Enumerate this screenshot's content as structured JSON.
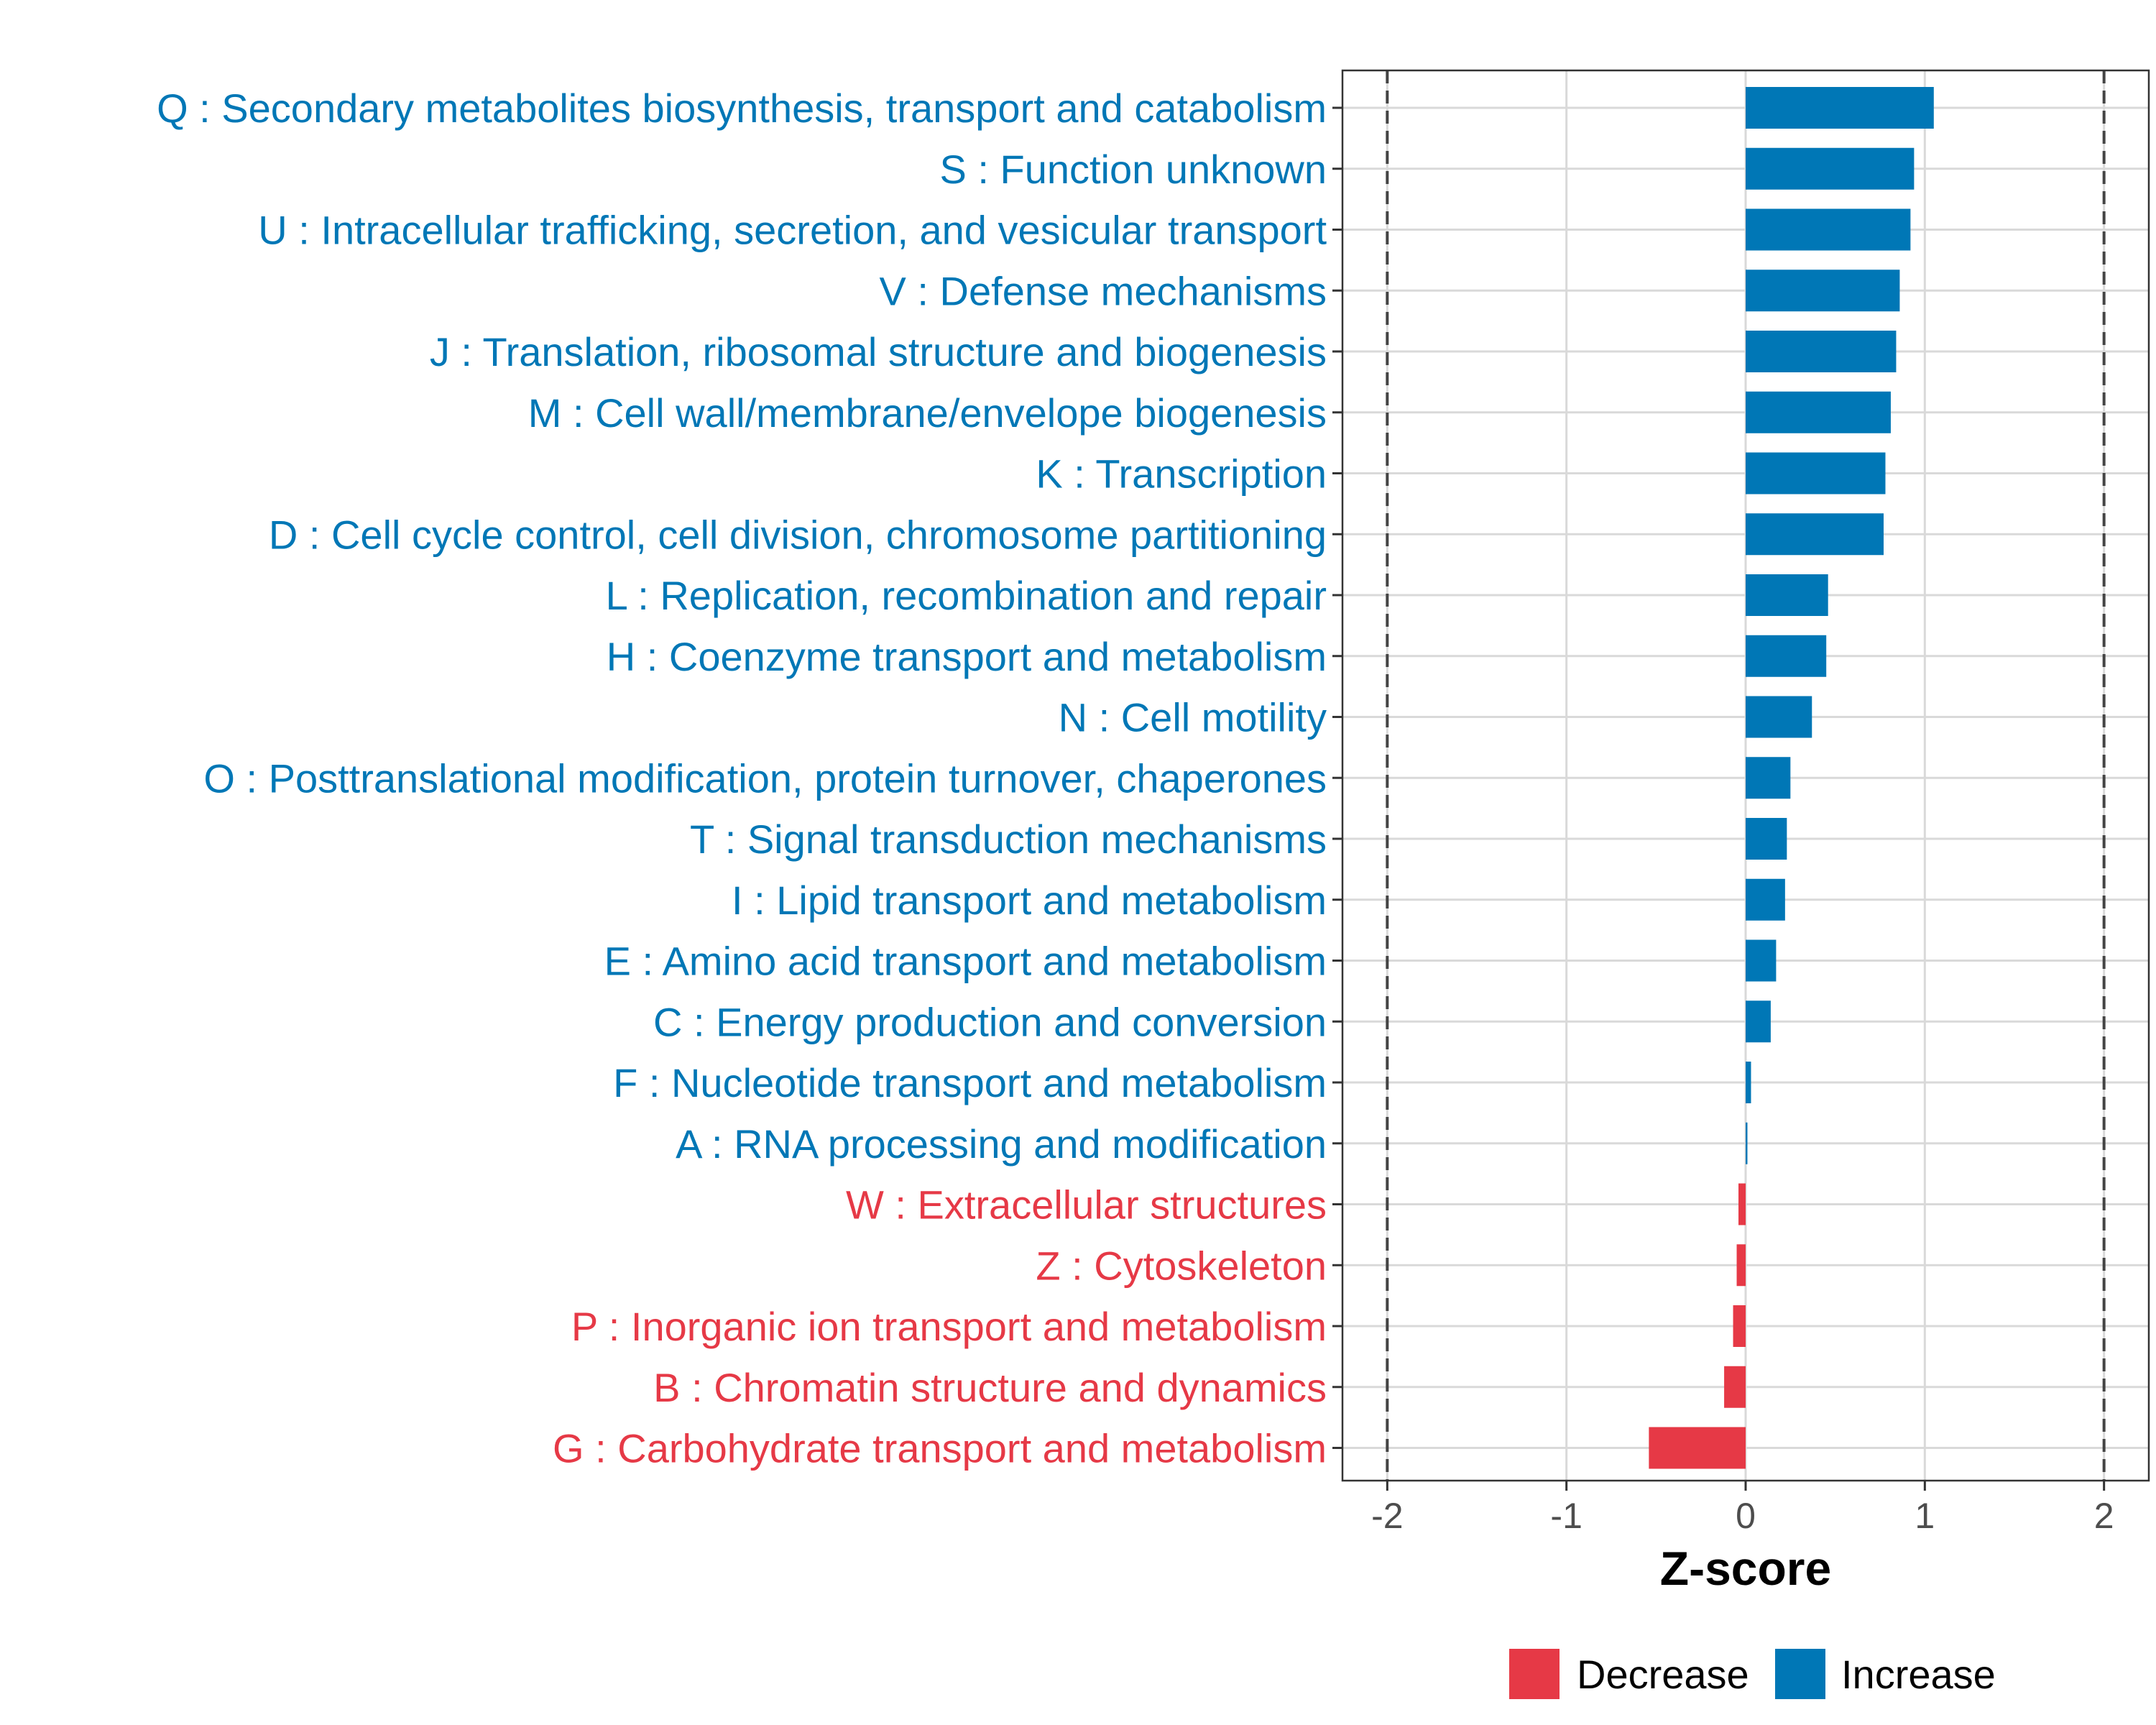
{
  "chart_data": {
    "type": "bar",
    "orientation": "horizontal",
    "title": "",
    "xlabel": "Z-score",
    "ylabel": "",
    "xlim": [
      -2.25,
      2.25
    ],
    "xticks": [
      -2,
      -1,
      0,
      1,
      2
    ],
    "tick_labels": [
      "-2",
      "-1",
      "0",
      "1",
      "2"
    ],
    "reference_lines": [
      -2,
      2
    ],
    "grid": true,
    "legend_position": "bottom",
    "colors": {
      "Decrease": "#e63946",
      "Increase": "#0077b6"
    },
    "legend": [
      {
        "label": "Decrease",
        "color": "#e63946"
      },
      {
        "label": "Increase",
        "color": "#0077b6"
      }
    ],
    "categories": [
      "Q : Secondary metabolites biosynthesis, transport and catabolism",
      "S : Function unknown",
      "U : Intracellular trafficking, secretion, and vesicular transport",
      "V : Defense mechanisms",
      "J : Translation, ribosomal structure and biogenesis",
      "M : Cell wall/membrane/envelope biogenesis",
      "K : Transcription",
      "D : Cell cycle control, cell division, chromosome partitioning",
      "L : Replication, recombination and repair",
      "H : Coenzyme transport and metabolism",
      "N : Cell motility",
      "O : Posttranslational modification, protein turnover, chaperones",
      "T : Signal transduction mechanisms",
      "I : Lipid transport and metabolism",
      "E : Amino acid transport and metabolism",
      "C : Energy production and conversion",
      "F : Nucleotide transport and metabolism",
      "A : RNA processing and modification",
      "W : Extracellular structures",
      "Z : Cytoskeleton",
      "P : Inorganic ion transport and metabolism",
      "B : Chromatin structure and dynamics",
      "G : Carbohydrate transport and metabolism"
    ],
    "values": [
      1.05,
      0.94,
      0.92,
      0.86,
      0.84,
      0.81,
      0.78,
      0.77,
      0.46,
      0.45,
      0.37,
      0.25,
      0.23,
      0.22,
      0.17,
      0.14,
      0.03,
      0.01,
      -0.04,
      -0.05,
      -0.07,
      -0.12,
      -0.54
    ],
    "direction": [
      "Increase",
      "Increase",
      "Increase",
      "Increase",
      "Increase",
      "Increase",
      "Increase",
      "Increase",
      "Increase",
      "Increase",
      "Increase",
      "Increase",
      "Increase",
      "Increase",
      "Increase",
      "Increase",
      "Increase",
      "Increase",
      "Decrease",
      "Decrease",
      "Decrease",
      "Decrease",
      "Decrease"
    ]
  }
}
